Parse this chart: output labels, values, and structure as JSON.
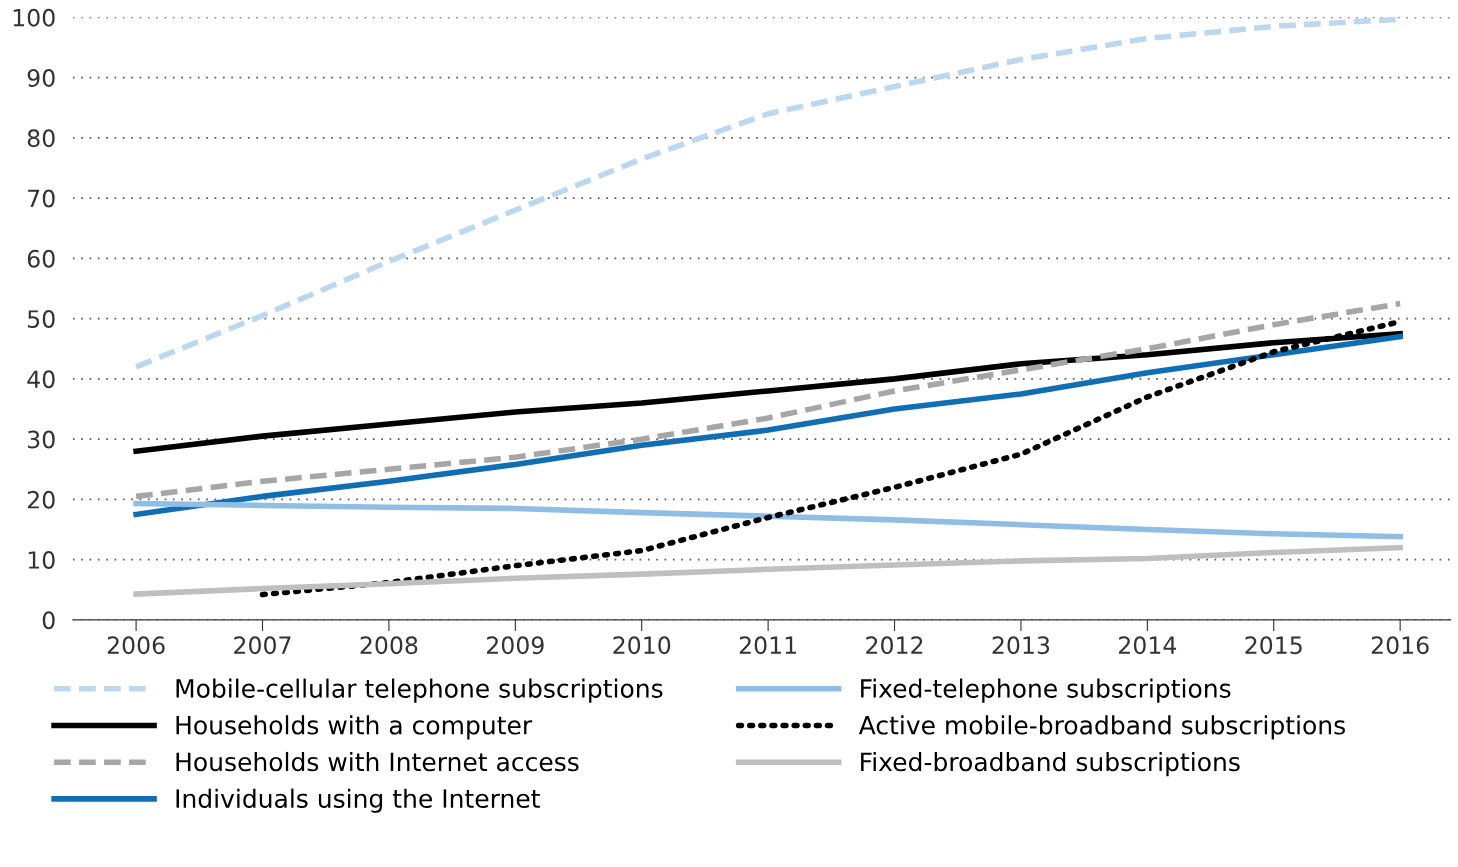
{
  "chart_data": {
    "type": "line",
    "x": [
      2006,
      2007,
      2008,
      2009,
      2010,
      2011,
      2012,
      2013,
      2014,
      2015,
      2016
    ],
    "xlim": [
      2005.5,
      2016.4
    ],
    "xticks": [
      2006,
      2007,
      2008,
      2009,
      2010,
      2011,
      2012,
      2013,
      2014,
      2015,
      2016
    ],
    "ylim": [
      0,
      100
    ],
    "yticks": [
      0,
      10,
      20,
      30,
      40,
      50,
      60,
      70,
      80,
      90,
      100
    ],
    "grid": "y",
    "legend": "bottom",
    "marker": "none",
    "series": [
      {
        "name": "Mobile-cellular telephone subscriptions",
        "color": "#bcd7ee",
        "line_style": "dashed",
        "values": [
          42,
          50.5,
          59.5,
          68,
          76.5,
          84,
          88.5,
          93,
          96.5,
          98.5,
          99.7
        ]
      },
      {
        "name": "Households with a computer",
        "color": "#000000",
        "line_style": "solid",
        "values": [
          28,
          30.5,
          32.5,
          34.5,
          36,
          38,
          40,
          42.5,
          44,
          46,
          47.5
        ]
      },
      {
        "name": "Households with Internet access",
        "color": "#a6a6a6",
        "line_style": "dashed",
        "values": [
          20.5,
          23,
          25,
          27,
          30,
          33.5,
          38,
          41.5,
          45,
          49,
          52.5
        ]
      },
      {
        "name": "Individuals using the Internet",
        "color": "#0f6eb4",
        "line_style": "solid",
        "values": [
          17.5,
          20.5,
          23,
          25.8,
          29,
          31.5,
          35,
          37.5,
          41,
          44,
          47
        ]
      },
      {
        "name": "Fixed-telephone subscriptions",
        "color": "#8fbde3",
        "line_style": "solid",
        "values": [
          19.3,
          19,
          18.7,
          18.5,
          17.8,
          17.2,
          16.6,
          15.8,
          15,
          14.3,
          13.8
        ]
      },
      {
        "name": "Active mobile-broadband subscriptions",
        "color": "#000000",
        "line_style": "dotted",
        "values": [
          null,
          4.2,
          6.2,
          9,
          11.5,
          17,
          22,
          27.5,
          37,
          44.5,
          49.5
        ]
      },
      {
        "name": "Fixed-broadband subscriptions",
        "color": "#bfbfbf",
        "line_style": "solid",
        "values": [
          4.3,
          5.2,
          6,
          6.9,
          7.6,
          8.4,
          9.1,
          9.8,
          10.2,
          11.2,
          12
        ]
      }
    ]
  }
}
